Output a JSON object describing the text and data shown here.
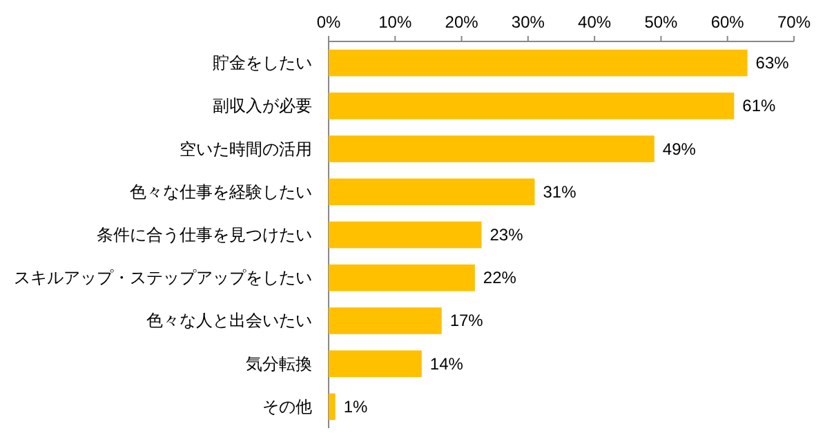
{
  "chart_data": {
    "type": "bar",
    "orientation": "horizontal",
    "categories": [
      "貯金をしたい",
      "副収入が必要",
      "空いた時間の活用",
      "色々な仕事を経験したい",
      "条件に合う仕事を見つけたい",
      "スキルアップ・ステップアップをしたい",
      "色々な人と出会いたい",
      "気分転換",
      "その他"
    ],
    "values": [
      63,
      61,
      49,
      31,
      23,
      22,
      17,
      14,
      1
    ],
    "value_labels": [
      "63%",
      "61%",
      "49%",
      "31%",
      "23%",
      "22%",
      "17%",
      "14%",
      "1%"
    ],
    "color": "#ffc000",
    "xlim": [
      0,
      70
    ],
    "xticks": [
      {
        "value": 0,
        "label": "0%"
      },
      {
        "value": 10,
        "label": "10%"
      },
      {
        "value": 20,
        "label": "20%"
      },
      {
        "value": 30,
        "label": "30%"
      },
      {
        "value": 40,
        "label": "40%"
      },
      {
        "value": 50,
        "label": "50%"
      },
      {
        "value": 60,
        "label": "60%"
      },
      {
        "value": 70,
        "label": "70%"
      }
    ]
  }
}
